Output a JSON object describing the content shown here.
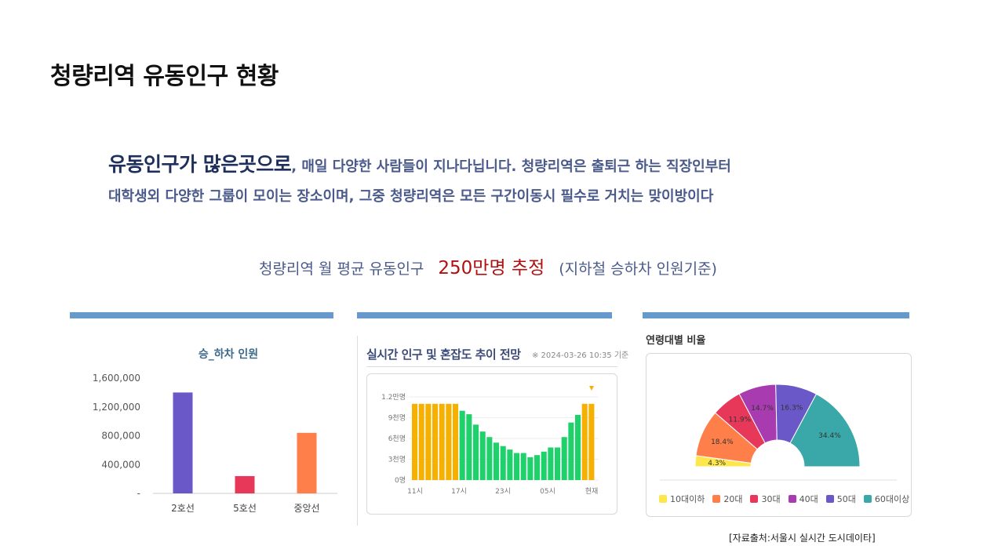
{
  "title": "청량리역 유동인구 현황",
  "intro": {
    "lead": "유동인구가 많은곳으로",
    "line1_rest": ", 매일 다양한 사람들이 지나다닙니다. 청량리역은 출퇴근 하는 직장인부터",
    "line2": "대학생외  다양한 그룹이 모이는 장소이며, 그중 청량리역은 모든 구간이동시 필수로 거치는 맞이방이다"
  },
  "estimate": {
    "prefix": "청량리역 월 평균 유동인구",
    "highlight": "250만명 추정",
    "suffix": "(지하철 승하차 인원기준)"
  },
  "colors": {
    "accent_bar": "#6699cc",
    "highlight_red": "#b01010",
    "heading_navy": "#1f2f5c"
  },
  "panel_age_title": "연령대별 비율",
  "panel_crowd": {
    "title": "실시간 인구 및 혼잡도 추이 전망",
    "timestamp": "※ 2024-03-26 10:35 기준"
  },
  "source": "[자료출처:서울시 실시간 도시데이타]",
  "chart_data": [
    {
      "type": "bar",
      "title": "승_하차 인원",
      "categories": [
        "2호선",
        "5호선",
        "중앙선"
      ],
      "values": [
        1400000,
        240000,
        840000
      ],
      "colors": [
        "#6a58c8",
        "#e8385a",
        "#ff7f4a"
      ],
      "yticks": [
        "1,600,000",
        "1,200,000",
        "800,000",
        "400,000",
        "-"
      ],
      "ylim": [
        0,
        1600000
      ],
      "grid": false
    },
    {
      "type": "bar",
      "title": "실시간 인구 및 혼잡도 추이 전망",
      "yticks": [
        "1.2만명",
        "9천명",
        "6천명",
        "3천명",
        "0명"
      ],
      "xticks": [
        "11시",
        "17시",
        "23시",
        "05시",
        "현재"
      ],
      "ylim": [
        0,
        12000
      ],
      "values": [
        11000,
        11000,
        11000,
        11000,
        11000,
        11000,
        11000,
        10000,
        9500,
        8000,
        7000,
        6200,
        5400,
        4900,
        4400,
        3900,
        3900,
        3300,
        3600,
        4100,
        4700,
        4700,
        6200,
        8300,
        9400,
        11000,
        11000
      ],
      "bar_colors": [
        "#f5b000",
        "#f5b000",
        "#f5b000",
        "#f5b000",
        "#f5b000",
        "#f5b000",
        "#f5b000",
        "#1fd16a",
        "#1fd16a",
        "#1fd16a",
        "#1fd16a",
        "#1fd16a",
        "#1fd16a",
        "#1fd16a",
        "#1fd16a",
        "#1fd16a",
        "#1fd16a",
        "#1fd16a",
        "#1fd16a",
        "#1fd16a",
        "#1fd16a",
        "#1fd16a",
        "#1fd16a",
        "#1fd16a",
        "#1fd16a",
        "#f5b000",
        "#f5b000"
      ],
      "current_marker": "현재"
    },
    {
      "type": "pie",
      "title": "연령대별 비율",
      "labels": [
        "10대이하",
        "20대",
        "30대",
        "40대",
        "50대",
        "60대이상"
      ],
      "values": [
        4.3,
        18.4,
        11.9,
        14.7,
        16.3,
        34.4
      ],
      "value_labels": [
        "4.3%",
        "18.4%",
        "11.9%",
        "14.7%",
        "16.3%",
        "34.4%"
      ],
      "colors": [
        "#fde74c",
        "#ff7f4a",
        "#e8385a",
        "#a93bb0",
        "#6a58c8",
        "#3aa8a8"
      ],
      "shape": "half-donut",
      "legend_position": "bottom"
    }
  ]
}
